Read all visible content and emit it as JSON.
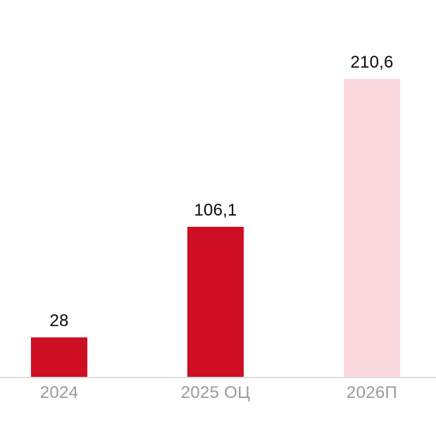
{
  "chart_data": {
    "type": "bar",
    "title": "",
    "xlabel": "",
    "ylabel": "",
    "categories": [
      "2024",
      "2025 ОЦ",
      "2026П"
    ],
    "values": [
      28,
      106.1,
      210.6
    ],
    "value_labels": [
      "28",
      "106,1",
      "210,6"
    ],
    "bar_colors": [
      "#CE0E22",
      "#CE0E22",
      "#FBD9DE"
    ],
    "ylim": [
      0,
      266
    ],
    "grid": false,
    "legend_position": "none",
    "axis_line_color": "#DCDCDC",
    "value_label_color": "#0A0A0A",
    "category_label_color": "#9A9A9A",
    "background_color": "#FFFFFF"
  }
}
